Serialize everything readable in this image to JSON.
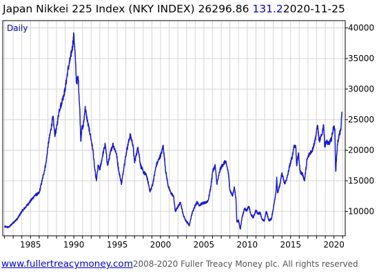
{
  "header": {
    "title": "Japan Nikkei 225 Index (NKY INDEX)",
    "last": "26296.86",
    "change": "131.2",
    "date": "2020-11-25"
  },
  "footer": {
    "site": "www.fullertreacymoney.com",
    "copyright": "2008-2020 Fuller Treacy Money plc. All rights reserved"
  },
  "colors": {
    "series": "#1a1acc",
    "grid": "#d4d4d4",
    "change": "#0000c0",
    "frequency": "#0000c0"
  },
  "chart_data": {
    "type": "line",
    "frequency_label": "Daily",
    "x_ticks": [
      1985,
      1990,
      1995,
      2000,
      2005,
      2010,
      2015,
      2020
    ],
    "y_ticks": [
      10000,
      15000,
      20000,
      25000,
      30000,
      35000,
      40000
    ],
    "y_tick_labels": [
      "10000",
      "15000",
      "20000",
      "25000",
      "30000",
      "35000",
      "40000"
    ],
    "xlim": [
      1981.8,
      2021.3
    ],
    "ylim": [
      6000,
      41200
    ],
    "y_axis_side": "right",
    "grid": true,
    "series": [
      {
        "points": [
          [
            1982.0,
            7500
          ],
          [
            1982.5,
            7400
          ],
          [
            1982.9,
            8000
          ],
          [
            1983.5,
            8800
          ],
          [
            1984.0,
            10000
          ],
          [
            1984.5,
            10800
          ],
          [
            1985.0,
            11700
          ],
          [
            1985.5,
            12600
          ],
          [
            1986.0,
            13000
          ],
          [
            1986.5,
            16000
          ],
          [
            1986.8,
            18000
          ],
          [
            1987.0,
            20500
          ],
          [
            1987.3,
            23000
          ],
          [
            1987.6,
            25500
          ],
          [
            1987.8,
            22500
          ],
          [
            1988.0,
            23500
          ],
          [
            1988.3,
            26500
          ],
          [
            1988.6,
            27800
          ],
          [
            1989.0,
            30000
          ],
          [
            1989.3,
            33000
          ],
          [
            1989.6,
            35000
          ],
          [
            1989.85,
            37000
          ],
          [
            1989.99,
            38915
          ],
          [
            1990.1,
            37000
          ],
          [
            1990.3,
            31000
          ],
          [
            1990.5,
            32000
          ],
          [
            1990.7,
            26000
          ],
          [
            1990.8,
            21500
          ],
          [
            1990.9,
            23500
          ],
          [
            1991.1,
            24000
          ],
          [
            1991.3,
            27000
          ],
          [
            1991.6,
            24500
          ],
          [
            1991.9,
            22500
          ],
          [
            1992.2,
            20000
          ],
          [
            1992.4,
            17000
          ],
          [
            1992.6,
            15000
          ],
          [
            1992.8,
            17500
          ],
          [
            1993.0,
            16800
          ],
          [
            1993.3,
            19000
          ],
          [
            1993.6,
            21000
          ],
          [
            1993.9,
            17500
          ],
          [
            1994.2,
            19500
          ],
          [
            1994.5,
            21000
          ],
          [
            1994.9,
            19500
          ],
          [
            1995.2,
            16500
          ],
          [
            1995.5,
            14500
          ],
          [
            1995.8,
            17500
          ],
          [
            1996.1,
            20000
          ],
          [
            1996.5,
            22500
          ],
          [
            1996.8,
            21000
          ],
          [
            1997.0,
            18000
          ],
          [
            1997.4,
            20500
          ],
          [
            1997.7,
            17500
          ],
          [
            1998.0,
            16500
          ],
          [
            1998.4,
            15800
          ],
          [
            1998.8,
            13200
          ],
          [
            1999.1,
            14500
          ],
          [
            1999.5,
            17500
          ],
          [
            1999.8,
            18500
          ],
          [
            2000.1,
            19500
          ],
          [
            2000.3,
            20800
          ],
          [
            2000.6,
            16500
          ],
          [
            2000.9,
            14000
          ],
          [
            2001.2,
            13000
          ],
          [
            2001.5,
            12500
          ],
          [
            2001.7,
            10000
          ],
          [
            2001.9,
            10500
          ],
          [
            2002.3,
            11500
          ],
          [
            2002.6,
            9500
          ],
          [
            2002.9,
            8500
          ],
          [
            2003.2,
            8000
          ],
          [
            2003.3,
            7600
          ],
          [
            2003.6,
            9500
          ],
          [
            2003.9,
            10700
          ],
          [
            2004.2,
            11500
          ],
          [
            2004.5,
            11000
          ],
          [
            2004.8,
            11300
          ],
          [
            2005.2,
            11400
          ],
          [
            2005.5,
            11800
          ],
          [
            2005.8,
            14000
          ],
          [
            2006.0,
            16500
          ],
          [
            2006.3,
            17500
          ],
          [
            2006.5,
            14500
          ],
          [
            2006.9,
            17000
          ],
          [
            2007.2,
            17700
          ],
          [
            2007.5,
            18200
          ],
          [
            2007.8,
            16500
          ],
          [
            2008.0,
            13500
          ],
          [
            2008.3,
            12500
          ],
          [
            2008.5,
            14000
          ],
          [
            2008.7,
            12000
          ],
          [
            2008.8,
            8300
          ],
          [
            2009.0,
            8500
          ],
          [
            2009.2,
            7100
          ],
          [
            2009.4,
            9000
          ],
          [
            2009.7,
            10500
          ],
          [
            2009.9,
            10100
          ],
          [
            2010.2,
            10800
          ],
          [
            2010.4,
            9500
          ],
          [
            2010.7,
            9000
          ],
          [
            2011.0,
            10200
          ],
          [
            2011.2,
            9600
          ],
          [
            2011.5,
            9800
          ],
          [
            2011.7,
            8700
          ],
          [
            2011.95,
            8400
          ],
          [
            2012.2,
            10000
          ],
          [
            2012.5,
            8500
          ],
          [
            2012.8,
            8800
          ],
          [
            2013.0,
            10500
          ],
          [
            2013.3,
            13000
          ],
          [
            2013.4,
            15600
          ],
          [
            2013.5,
            13000
          ],
          [
            2013.8,
            14500
          ],
          [
            2013.99,
            16300
          ],
          [
            2014.3,
            14500
          ],
          [
            2014.6,
            15500
          ],
          [
            2014.9,
            17500
          ],
          [
            2015.2,
            19000
          ],
          [
            2015.4,
            20800
          ],
          [
            2015.6,
            20500
          ],
          [
            2015.7,
            17500
          ],
          [
            2015.9,
            19500
          ],
          [
            2016.1,
            16500
          ],
          [
            2016.4,
            16000
          ],
          [
            2016.6,
            15000
          ],
          [
            2016.9,
            18500
          ],
          [
            2017.2,
            19500
          ],
          [
            2017.5,
            20000
          ],
          [
            2017.8,
            21500
          ],
          [
            2017.99,
            23000
          ],
          [
            2018.1,
            24100
          ],
          [
            2018.3,
            21500
          ],
          [
            2018.6,
            22500
          ],
          [
            2018.8,
            24200
          ],
          [
            2018.95,
            20500
          ],
          [
            2019.1,
            21500
          ],
          [
            2019.4,
            21000
          ],
          [
            2019.7,
            21800
          ],
          [
            2019.95,
            23800
          ],
          [
            2020.1,
            23500
          ],
          [
            2020.2,
            16550
          ],
          [
            2020.4,
            21000
          ],
          [
            2020.6,
            22500
          ],
          [
            2020.8,
            23300
          ],
          [
            2020.85,
            24800
          ],
          [
            2020.9,
            26297
          ]
        ]
      }
    ]
  }
}
